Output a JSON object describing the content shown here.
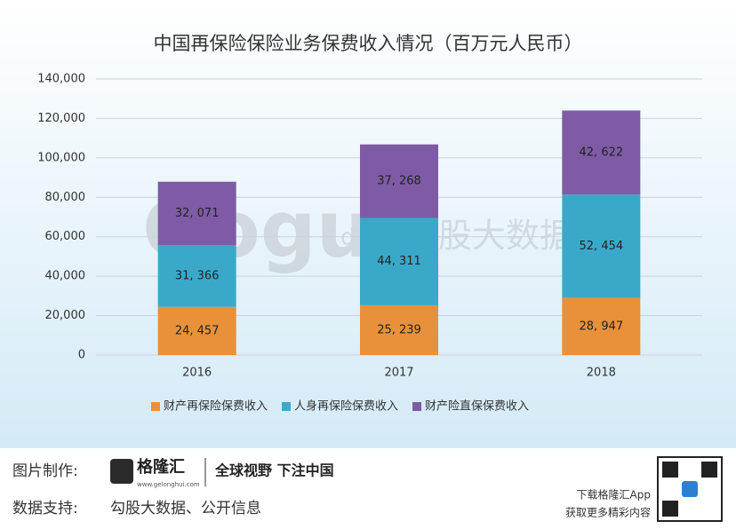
{
  "chart_data": {
    "type": "stacked_bar",
    "title": "中国再保险保险业务保费收入情况（百万元人民币）",
    "categories": [
      "2016",
      "2017",
      "2018"
    ],
    "series": [
      {
        "name": "财产再保险保费收入",
        "color": "#e8913a",
        "values": [
          24457,
          25239,
          28947
        ],
        "value_labels": [
          "24, 457",
          "25, 239",
          "28, 947"
        ]
      },
      {
        "name": "人身再保险保费收入",
        "color": "#3aa9c9",
        "values": [
          31366,
          44311,
          52454
        ],
        "value_labels": [
          "31, 366",
          "44, 311",
          "52, 454"
        ]
      },
      {
        "name": "财产险直保保费收入",
        "color": "#7e5ba4",
        "values": [
          32071,
          37268,
          42622
        ],
        "value_labels": [
          "32, 071",
          "37, 268",
          "42, 622"
        ]
      }
    ],
    "ylim": [
      0,
      140000
    ],
    "yticks": [
      0,
      {
        "value": 20000,
        "label": "20,000"
      },
      {
        "value": 40000,
        "label": "40,000"
      },
      {
        "value": 60000,
        "label": "60,000"
      },
      {
        "value": 80000,
        "label": "80,000"
      },
      {
        "value": 100000,
        "label": "100,000"
      },
      {
        "value": 120000,
        "label": "120,000"
      },
      {
        "value": 140000,
        "label": "140,000"
      }
    ],
    "grid": true,
    "legend": "bottom",
    "watermark": {
      "logo": "Gogu",
      "sub": "data",
      "name": "勾股大数据"
    }
  },
  "footer": {
    "maker_label": "图片制作:",
    "brand": "格隆汇",
    "brand_url": "www.gelonghui.com",
    "slogan": "全球视野 下注中国",
    "source_label": "数据支持:",
    "source": "勾股大数据、公开信息",
    "app_line1": "下载格隆汇App",
    "app_line2": "获取更多精彩内容"
  }
}
